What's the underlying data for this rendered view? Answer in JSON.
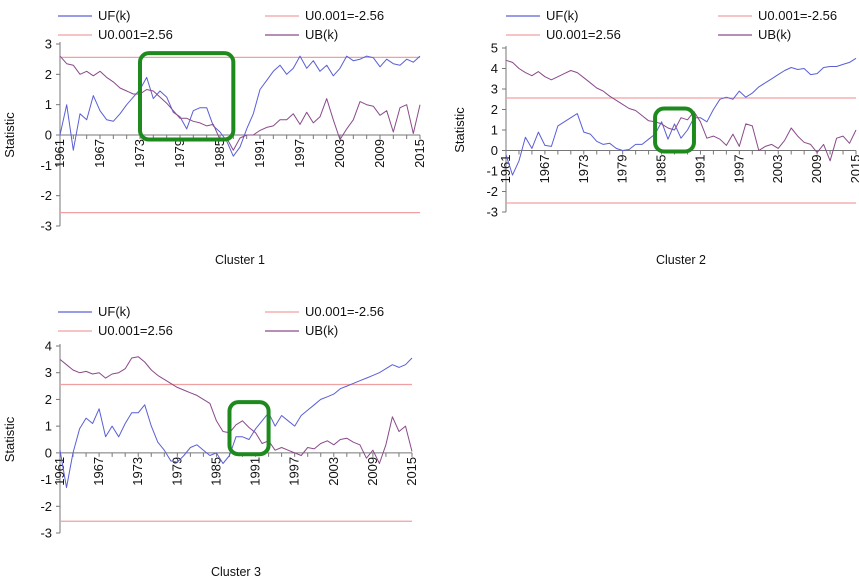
{
  "legend": {
    "uf": "UF(k)",
    "neg": "U0.001=-2.56",
    "pos": "U0.001=2.56",
    "ub": "UB(k)"
  },
  "colors": {
    "uf": "#5a5fd6",
    "ub": "#8a4a8a",
    "threshold": "#f0a0a0",
    "highlight": "#1e8a1e",
    "axis": "#777777"
  },
  "chart_data": [
    {
      "type": "line",
      "caption": "Cluster 1",
      "ylabel": "Statistic",
      "xlabel": "",
      "x_range": [
        1961,
        2015
      ],
      "x_ticks": [
        1961,
        1967,
        1973,
        1979,
        1985,
        1991,
        1997,
        2003,
        2009,
        2015
      ],
      "ylim": [
        -3,
        3
      ],
      "y_ticks": [
        3,
        2,
        1,
        0,
        -1,
        -2,
        -3
      ],
      "thresholds": [
        2.56,
        -2.56
      ],
      "highlight_x": [
        1973,
        1987
      ],
      "highlight_y": [
        -0.15,
        2.7
      ],
      "series": [
        {
          "name": "UF(k)",
          "x": [
            1961,
            1962,
            1963,
            1964,
            1965,
            1966,
            1967,
            1968,
            1969,
            1970,
            1971,
            1972,
            1973,
            1974,
            1975,
            1976,
            1977,
            1978,
            1979,
            1980,
            1981,
            1982,
            1983,
            1984,
            1985,
            1986,
            1987,
            1988,
            1989,
            1990,
            1991,
            1992,
            1993,
            1994,
            1995,
            1996,
            1997,
            1998,
            1999,
            2000,
            2001,
            2002,
            2003,
            2004,
            2005,
            2006,
            2007,
            2008,
            2009,
            2010,
            2011,
            2012,
            2013,
            2014,
            2015
          ],
          "y": [
            0.0,
            1.0,
            -0.5,
            0.7,
            0.5,
            1.3,
            0.8,
            0.5,
            0.45,
            0.7,
            1.0,
            1.25,
            1.5,
            1.9,
            1.2,
            1.45,
            1.25,
            0.75,
            0.6,
            0.2,
            0.8,
            0.9,
            0.9,
            0.3,
            0.1,
            -0.2,
            -0.7,
            -0.4,
            0.2,
            0.7,
            1.5,
            1.8,
            2.1,
            2.3,
            2.0,
            2.2,
            2.6,
            2.2,
            2.45,
            2.1,
            2.3,
            1.95,
            2.2,
            2.6,
            2.45,
            2.5,
            2.6,
            2.55,
            2.25,
            2.5,
            2.35,
            2.3,
            2.5,
            2.4,
            2.6
          ]
        },
        {
          "name": "UB(k)",
          "x": [
            1961,
            1962,
            1963,
            1964,
            1965,
            1966,
            1967,
            1968,
            1969,
            1970,
            1971,
            1972,
            1973,
            1974,
            1975,
            1976,
            1977,
            1978,
            1979,
            1980,
            1981,
            1982,
            1983,
            1984,
            1985,
            1986,
            1987,
            1988,
            1989,
            1990,
            1991,
            1992,
            1993,
            1994,
            1995,
            1996,
            1997,
            1998,
            1999,
            2000,
            2001,
            2002,
            2003,
            2004,
            2005,
            2006,
            2007,
            2008,
            2009,
            2010,
            2011,
            2012,
            2013,
            2014,
            2015
          ],
          "y": [
            2.6,
            2.35,
            2.3,
            2.0,
            2.1,
            1.95,
            2.1,
            1.9,
            1.75,
            1.55,
            1.45,
            1.35,
            1.35,
            1.5,
            1.45,
            1.25,
            1.05,
            0.8,
            0.55,
            0.55,
            0.45,
            0.4,
            0.3,
            0.35,
            -0.15,
            -0.1,
            -0.5,
            -0.1,
            0.0,
            0.0,
            0.15,
            0.25,
            0.3,
            0.5,
            0.5,
            0.7,
            0.35,
            0.75,
            0.4,
            0.6,
            1.2,
            0.5,
            -0.15,
            0.2,
            0.5,
            1.1,
            1.0,
            0.95,
            0.65,
            0.8,
            0.1,
            0.9,
            1.0,
            0.05,
            1.0
          ]
        }
      ]
    },
    {
      "type": "line",
      "caption": "Cluster 2",
      "ylabel": "Statistic",
      "xlabel": "",
      "x_range": [
        1961,
        2015
      ],
      "x_ticks": [
        1961,
        1967,
        1973,
        1979,
        1985,
        1991,
        1997,
        2003,
        2009,
        2015
      ],
      "ylim": [
        -3,
        5
      ],
      "y_ticks": [
        5,
        4,
        3,
        2,
        1,
        0,
        -1,
        -2,
        -3
      ],
      "thresholds": [
        2.56,
        -2.56
      ],
      "highlight_x": [
        1984,
        1990
      ],
      "highlight_y": [
        -0.05,
        2.05
      ],
      "series": [
        {
          "name": "UF(k)",
          "x": [
            1961,
            1962,
            1963,
            1964,
            1965,
            1966,
            1967,
            1968,
            1969,
            1970,
            1971,
            1972,
            1973,
            1974,
            1975,
            1976,
            1977,
            1978,
            1979,
            1980,
            1981,
            1982,
            1983,
            1984,
            1985,
            1986,
            1987,
            1988,
            1989,
            1990,
            1991,
            1992,
            1993,
            1994,
            1995,
            1996,
            1997,
            1998,
            1999,
            2000,
            2001,
            2002,
            2003,
            2004,
            2005,
            2006,
            2007,
            2008,
            2009,
            2010,
            2011,
            2012,
            2013,
            2014,
            2015
          ],
          "y": [
            -0.2,
            -1.2,
            -0.5,
            0.65,
            0.1,
            0.9,
            0.25,
            0.2,
            1.2,
            1.4,
            1.6,
            1.8,
            0.9,
            0.8,
            0.45,
            0.3,
            0.35,
            0.1,
            0.0,
            0.05,
            0.3,
            0.3,
            0.55,
            0.8,
            1.4,
            0.55,
            1.3,
            0.6,
            1.0,
            1.6,
            1.6,
            1.4,
            2.0,
            2.5,
            2.6,
            2.5,
            2.9,
            2.6,
            2.8,
            3.1,
            3.3,
            3.5,
            3.7,
            3.9,
            4.05,
            3.95,
            4.0,
            3.7,
            3.75,
            4.05,
            4.1,
            4.1,
            4.2,
            4.3,
            4.5
          ]
        },
        {
          "name": "UB(k)",
          "x": [
            1961,
            1962,
            1963,
            1964,
            1965,
            1966,
            1967,
            1968,
            1969,
            1970,
            1971,
            1972,
            1973,
            1974,
            1975,
            1976,
            1977,
            1978,
            1979,
            1980,
            1981,
            1982,
            1983,
            1984,
            1985,
            1986,
            1987,
            1988,
            1989,
            1990,
            1991,
            1992,
            1993,
            1994,
            1995,
            1996,
            1997,
            1998,
            1999,
            2000,
            2001,
            2002,
            2003,
            2004,
            2005,
            2006,
            2007,
            2008,
            2009,
            2010,
            2011,
            2012,
            2013,
            2014,
            2015
          ],
          "y": [
            4.4,
            4.3,
            4.0,
            3.8,
            3.65,
            3.85,
            3.6,
            3.45,
            3.6,
            3.75,
            3.9,
            3.8,
            3.55,
            3.3,
            3.05,
            2.9,
            2.65,
            2.45,
            2.25,
            2.05,
            1.95,
            1.7,
            1.45,
            1.4,
            1.3,
            1.1,
            1.0,
            1.6,
            1.5,
            1.9,
            1.4,
            0.6,
            0.7,
            0.55,
            0.25,
            0.8,
            0.2,
            1.3,
            1.2,
            0.0,
            0.2,
            0.3,
            0.1,
            0.5,
            1.1,
            0.7,
            0.4,
            0.3,
            -0.1,
            0.3,
            -0.5,
            0.6,
            0.7,
            0.35,
            1.0
          ]
        }
      ]
    },
    {
      "type": "line",
      "caption": "Cluster 3",
      "ylabel": "Statistic",
      "xlabel": "",
      "x_range": [
        1961,
        2015
      ],
      "x_ticks": [
        1961,
        1967,
        1973,
        1979,
        1985,
        1991,
        1997,
        2003,
        2009,
        2015
      ],
      "ylim": [
        -3,
        4
      ],
      "y_ticks": [
        4,
        3,
        2,
        1,
        0,
        -1,
        -2,
        -3
      ],
      "thresholds": [
        2.56,
        -2.56
      ],
      "highlight_x": [
        1987,
        1993
      ],
      "highlight_y": [
        -0.05,
        1.9
      ],
      "series": [
        {
          "name": "UF(k)",
          "x": [
            1961,
            1962,
            1963,
            1964,
            1965,
            1966,
            1967,
            1968,
            1969,
            1970,
            1971,
            1972,
            1973,
            1974,
            1975,
            1976,
            1977,
            1978,
            1979,
            1980,
            1981,
            1982,
            1983,
            1984,
            1985,
            1986,
            1987,
            1988,
            1989,
            1990,
            1991,
            1992,
            1993,
            1994,
            1995,
            1996,
            1997,
            1998,
            1999,
            2000,
            2001,
            2002,
            2003,
            2004,
            2005,
            2006,
            2007,
            2008,
            2009,
            2010,
            2011,
            2012,
            2013,
            2014,
            2015
          ],
          "y": [
            0.1,
            -1.3,
            0.0,
            0.9,
            1.3,
            1.1,
            1.65,
            0.6,
            1.0,
            0.6,
            1.1,
            1.5,
            1.5,
            1.8,
            1.0,
            0.4,
            0.1,
            -0.3,
            -0.35,
            -0.1,
            0.2,
            0.3,
            0.1,
            -0.1,
            0.0,
            -0.4,
            -0.1,
            0.6,
            0.6,
            0.5,
            0.9,
            1.2,
            1.5,
            1.0,
            1.4,
            1.2,
            1.0,
            1.4,
            1.6,
            1.8,
            2.0,
            2.1,
            2.2,
            2.4,
            2.5,
            2.6,
            2.7,
            2.8,
            2.9,
            3.0,
            3.15,
            3.3,
            3.2,
            3.3,
            3.55
          ]
        },
        {
          "name": "UB(k)",
          "x": [
            1961,
            1962,
            1963,
            1964,
            1965,
            1966,
            1967,
            1968,
            1969,
            1970,
            1971,
            1972,
            1973,
            1974,
            1975,
            1976,
            1977,
            1978,
            1979,
            1980,
            1981,
            1982,
            1983,
            1984,
            1985,
            1986,
            1987,
            1988,
            1989,
            1990,
            1991,
            1992,
            1993,
            1994,
            1995,
            1996,
            1997,
            1998,
            1999,
            2000,
            2001,
            2002,
            2003,
            2004,
            2005,
            2006,
            2007,
            2008,
            2009,
            2010,
            2011,
            2012,
            2013,
            2014,
            2015
          ],
          "y": [
            3.5,
            3.3,
            3.1,
            3.0,
            3.05,
            2.95,
            3.0,
            2.8,
            2.95,
            3.0,
            3.15,
            3.55,
            3.6,
            3.4,
            3.1,
            2.9,
            2.75,
            2.6,
            2.45,
            2.35,
            2.25,
            2.15,
            2.0,
            1.85,
            1.2,
            0.8,
            0.75,
            1.05,
            1.2,
            0.95,
            0.75,
            0.35,
            0.45,
            0.1,
            0.2,
            0.1,
            0.0,
            -0.1,
            0.2,
            0.15,
            0.35,
            0.45,
            0.3,
            0.5,
            0.55,
            0.4,
            0.3,
            -0.2,
            0.1,
            -0.4,
            0.3,
            1.35,
            0.8,
            1.0,
            0.05
          ]
        }
      ]
    }
  ]
}
